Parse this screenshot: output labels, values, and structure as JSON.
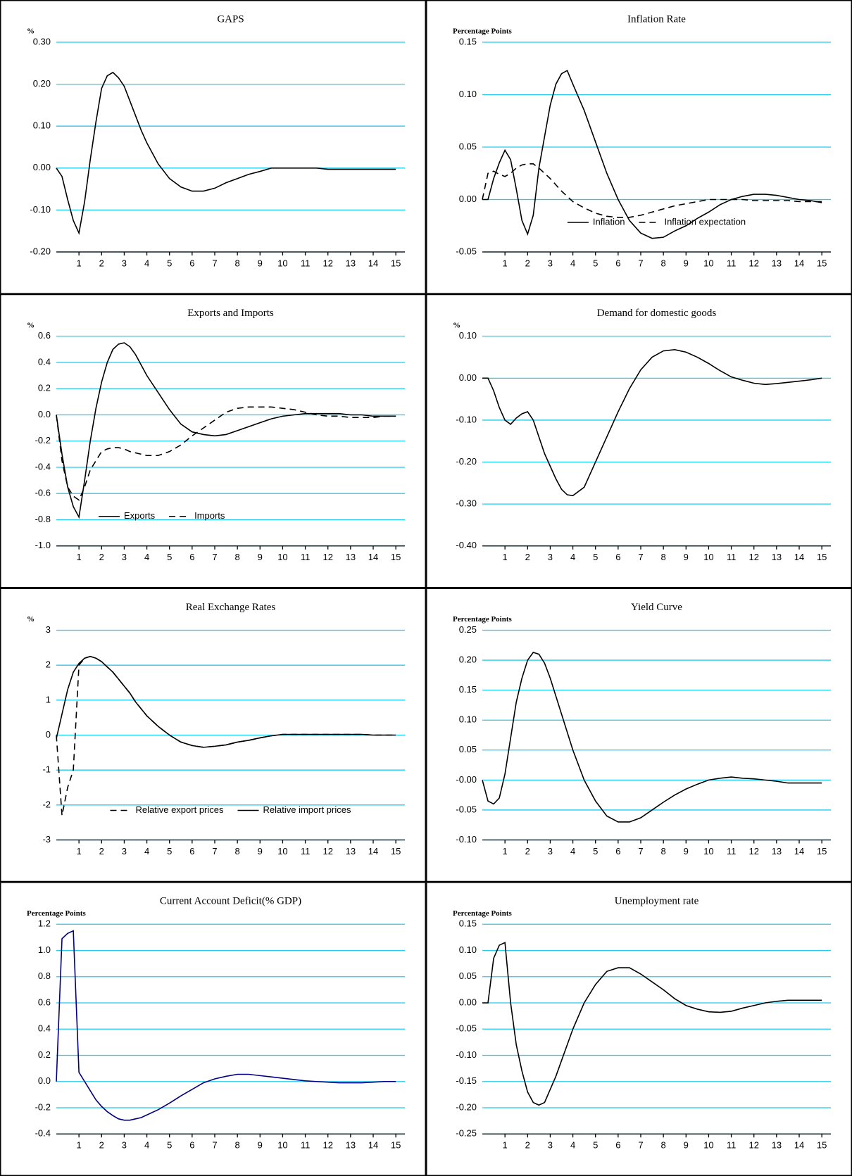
{
  "chart_data": [
    {
      "type": "line",
      "title": "GAPS",
      "ylabel": "%",
      "color": "#000000",
      "grid": true,
      "x": [
        0,
        0.25,
        0.5,
        0.75,
        1,
        1.25,
        1.5,
        1.75,
        2,
        2.25,
        2.5,
        2.75,
        3,
        3.25,
        3.5,
        3.75,
        4,
        4.5,
        5,
        5.5,
        6,
        6.5,
        7,
        7.5,
        8,
        8.5,
        9,
        9.5,
        10,
        10.5,
        11,
        11.5,
        12,
        12.5,
        13,
        13.5,
        14,
        14.5,
        15
      ],
      "values": [
        0,
        -0.02,
        -0.075,
        -0.125,
        -0.155,
        -0.08,
        0.02,
        0.11,
        0.19,
        0.22,
        0.228,
        0.215,
        0.195,
        0.16,
        0.125,
        0.09,
        0.06,
        0.01,
        -0.025,
        -0.045,
        -0.055,
        -0.055,
        -0.048,
        -0.035,
        -0.025,
        -0.015,
        -0.008,
        0,
        0,
        0,
        0,
        0,
        -0.003,
        -0.003,
        -0.003,
        -0.003,
        -0.003,
        -0.003,
        -0.003
      ],
      "xlim": [
        0,
        15.4
      ],
      "xticks": [
        1,
        2,
        3,
        4,
        5,
        6,
        7,
        8,
        9,
        10,
        11,
        12,
        13,
        14,
        15
      ],
      "ylim": [
        -0.2,
        0.3
      ],
      "yticks": [
        {
          "value": 0.3,
          "label": "0.30"
        },
        {
          "value": 0.2,
          "label": "0.20"
        },
        {
          "value": 0.1,
          "label": "0.10"
        },
        {
          "value": 0,
          "label": "0.00"
        },
        {
          "value": -0.1,
          "label": "-0.10"
        },
        {
          "value": -0.2,
          "label": "-0.20"
        }
      ]
    },
    {
      "type": "line",
      "title": "Inflation Rate",
      "ylabel": "Percentage Points",
      "grid": true,
      "legend": "lower center",
      "x": [
        0,
        0.25,
        0.5,
        0.75,
        1,
        1.25,
        1.5,
        1.75,
        2,
        2.25,
        2.5,
        2.75,
        3,
        3.25,
        3.5,
        3.75,
        4,
        4.5,
        5,
        5.5,
        6,
        6.5,
        7,
        7.5,
        8,
        8.5,
        9,
        9.5,
        10,
        10.5,
        11,
        11.5,
        12,
        12.5,
        13,
        13.5,
        14,
        14.5,
        15
      ],
      "series": [
        {
          "name": "Inflation",
          "color": "#000000",
          "dash": false,
          "values": [
            0,
            0,
            0.02,
            0.035,
            0.047,
            0.038,
            0.01,
            -0.02,
            -0.033,
            -0.015,
            0.03,
            0.06,
            0.09,
            0.11,
            0.12,
            0.123,
            0.11,
            0.085,
            0.055,
            0.025,
            0,
            -0.02,
            -0.032,
            -0.037,
            -0.036,
            -0.03,
            -0.025,
            -0.018,
            -0.012,
            -0.005,
            0,
            0.003,
            0.005,
            0.005,
            0.004,
            0.002,
            0,
            -0.001,
            -0.003
          ]
        },
        {
          "name": "Inflation expectation",
          "color": "#000000",
          "dash": true,
          "values": [
            0,
            0.025,
            0.027,
            0.024,
            0.022,
            0.025,
            0.03,
            0.033,
            0.034,
            0.034,
            0.03,
            0.025,
            0.02,
            0.014,
            0.008,
            0.003,
            -0.002,
            -0.008,
            -0.013,
            -0.016,
            -0.017,
            -0.017,
            -0.015,
            -0.012,
            -0.009,
            -0.006,
            -0.004,
            -0.002,
            0,
            0,
            0,
            0,
            -0.001,
            -0.001,
            -0.001,
            -0.001,
            -0.002,
            -0.002,
            -0.002
          ]
        }
      ],
      "xlim": [
        0,
        15.4
      ],
      "xticks": [
        1,
        2,
        3,
        4,
        5,
        6,
        7,
        8,
        9,
        10,
        11,
        12,
        13,
        14,
        15
      ],
      "ylim": [
        -0.05,
        0.15
      ],
      "yticks": [
        {
          "value": 0.15,
          "label": "0.15"
        },
        {
          "value": 0.1,
          "label": "0.10"
        },
        {
          "value": 0.05,
          "label": "0.05"
        },
        {
          "value": 0,
          "label": "0.00"
        },
        {
          "value": -0.05,
          "label": "-0.05"
        }
      ]
    },
    {
      "type": "line",
      "title": "Exports and Imports",
      "ylabel": "%",
      "grid": true,
      "legend": "lower left",
      "x": [
        0,
        0.25,
        0.5,
        0.75,
        1,
        1.25,
        1.5,
        1.75,
        2,
        2.25,
        2.5,
        2.75,
        3,
        3.25,
        3.5,
        3.75,
        4,
        4.5,
        5,
        5.5,
        6,
        6.5,
        7,
        7.5,
        8,
        8.5,
        9,
        9.5,
        10,
        10.5,
        11,
        11.5,
        12,
        12.5,
        13,
        13.5,
        14,
        14.5,
        15
      ],
      "series": [
        {
          "name": "Exports",
          "color": "#000000",
          "dash": false,
          "values": [
            0,
            -0.3,
            -0.55,
            -0.7,
            -0.78,
            -0.5,
            -0.2,
            0.05,
            0.25,
            0.4,
            0.5,
            0.54,
            0.55,
            0.52,
            0.46,
            0.38,
            0.3,
            0.17,
            0.04,
            -0.07,
            -0.13,
            -0.15,
            -0.16,
            -0.15,
            -0.12,
            -0.09,
            -0.06,
            -0.03,
            -0.01,
            0,
            0.01,
            0.01,
            0.01,
            0.01,
            0,
            0,
            -0.01,
            -0.01,
            -0.01
          ]
        },
        {
          "name": "Imports",
          "color": "#000000",
          "dash": true,
          "values": [
            0,
            -0.35,
            -0.55,
            -0.62,
            -0.65,
            -0.55,
            -0.42,
            -0.35,
            -0.28,
            -0.26,
            -0.25,
            -0.25,
            -0.26,
            -0.28,
            -0.29,
            -0.3,
            -0.31,
            -0.31,
            -0.28,
            -0.23,
            -0.16,
            -0.1,
            -0.04,
            0.02,
            0.05,
            0.06,
            0.06,
            0.06,
            0.05,
            0.04,
            0.02,
            0,
            -0.01,
            -0.01,
            -0.02,
            -0.02,
            -0.02,
            -0.01,
            -0.01
          ]
        }
      ],
      "xlim": [
        0,
        15.4
      ],
      "xticks": [
        1,
        2,
        3,
        4,
        5,
        6,
        7,
        8,
        9,
        10,
        11,
        12,
        13,
        14,
        15
      ],
      "ylim": [
        -1.0,
        0.6
      ],
      "yticks": [
        0.6,
        0.4,
        0.2,
        {
          "value": 0,
          "label": "0.0"
        },
        -0.2,
        -0.4,
        -0.6,
        -0.8,
        {
          "value": -1.0,
          "label": "-1.0"
        }
      ]
    },
    {
      "type": "line",
      "title": "Demand for domestic goods",
      "ylabel": "%",
      "color": "#000000",
      "grid": true,
      "x": [
        0,
        0.25,
        0.5,
        0.75,
        1,
        1.25,
        1.5,
        1.75,
        2,
        2.25,
        2.5,
        2.75,
        3,
        3.25,
        3.5,
        3.75,
        4,
        4.5,
        5,
        5.5,
        6,
        6.5,
        7,
        7.5,
        8,
        8.5,
        9,
        9.5,
        10,
        10.5,
        11,
        11.5,
        12,
        12.5,
        13,
        13.5,
        14,
        14.5,
        15
      ],
      "values": [
        0,
        0,
        -0.03,
        -0.07,
        -0.1,
        -0.11,
        -0.095,
        -0.085,
        -0.08,
        -0.1,
        -0.14,
        -0.18,
        -0.21,
        -0.24,
        -0.265,
        -0.278,
        -0.28,
        -0.26,
        -0.2,
        -0.14,
        -0.08,
        -0.025,
        0.02,
        0.05,
        0.065,
        0.068,
        0.062,
        0.05,
        0.035,
        0.018,
        0.003,
        -0.005,
        -0.012,
        -0.015,
        -0.013,
        -0.01,
        -0.007,
        -0.004,
        0
      ],
      "xlim": [
        0,
        15.4
      ],
      "xticks": [
        1,
        2,
        3,
        4,
        5,
        6,
        7,
        8,
        9,
        10,
        11,
        12,
        13,
        14,
        15
      ],
      "ylim": [
        -0.4,
        0.1
      ],
      "yticks": [
        {
          "value": 0.1,
          "label": "0.10"
        },
        {
          "value": 0,
          "label": "0.00"
        },
        {
          "value": -0.1,
          "label": "-0.10"
        },
        {
          "value": -0.2,
          "label": "-0.20"
        },
        {
          "value": -0.3,
          "label": "-0.30"
        },
        {
          "value": -0.4,
          "label": "-0.40"
        }
      ]
    },
    {
      "type": "line",
      "title": "Real Exchange Rates",
      "ylabel": "%",
      "grid": true,
      "legend": "lower center",
      "x": [
        0,
        0.25,
        0.5,
        0.75,
        1,
        1.25,
        1.5,
        1.75,
        2,
        2.25,
        2.5,
        2.75,
        3,
        3.25,
        3.5,
        3.75,
        4,
        4.5,
        5,
        5.5,
        6,
        6.5,
        7,
        7.5,
        8,
        8.5,
        9,
        9.5,
        10,
        10.5,
        11,
        11.5,
        12,
        12.5,
        13,
        13.5,
        14,
        14.5,
        15
      ],
      "series": [
        {
          "name": "Relative export prices",
          "color": "#000000",
          "dash": true,
          "values": [
            0,
            -2.3,
            -1.5,
            -1.0,
            2.0,
            2.2,
            2.25,
            2.2,
            2.1,
            1.95,
            1.8,
            1.6,
            1.4,
            1.2,
            0.95,
            0.75,
            0.55,
            0.25,
            0,
            -0.2,
            -0.3,
            -0.35,
            -0.32,
            -0.28,
            -0.2,
            -0.15,
            -0.08,
            -0.02,
            0.02,
            0.02,
            0.02,
            0.02,
            0.02,
            0.02,
            0.02,
            0.02,
            0,
            0,
            0
          ]
        },
        {
          "name": "Relative import prices",
          "color": "#000000",
          "dash": false,
          "values": [
            -0.1,
            0.6,
            1.3,
            1.8,
            2.05,
            2.2,
            2.25,
            2.2,
            2.1,
            1.95,
            1.8,
            1.6,
            1.4,
            1.2,
            0.95,
            0.75,
            0.55,
            0.25,
            0,
            -0.2,
            -0.3,
            -0.35,
            -0.32,
            -0.28,
            -0.2,
            -0.15,
            -0.08,
            -0.02,
            0.02,
            0.02,
            0.02,
            0.02,
            0.02,
            0.02,
            0.02,
            0.02,
            0,
            0,
            0
          ]
        }
      ],
      "xlim": [
        0,
        15.4
      ],
      "xticks": [
        1,
        2,
        3,
        4,
        5,
        6,
        7,
        8,
        9,
        10,
        11,
        12,
        13,
        14,
        15
      ],
      "ylim": [
        -3,
        3
      ],
      "yticks": [
        3,
        2,
        1,
        0,
        -1,
        -2,
        -3
      ]
    },
    {
      "type": "line",
      "title": "Yield Curve",
      "ylabel": "Percentage Points",
      "color": "#000000",
      "grid": true,
      "x": [
        0,
        0.25,
        0.5,
        0.75,
        1,
        1.25,
        1.5,
        1.75,
        2,
        2.25,
        2.5,
        2.75,
        3,
        3.25,
        3.5,
        3.75,
        4,
        4.5,
        5,
        5.5,
        6,
        6.5,
        7,
        7.5,
        8,
        8.5,
        9,
        9.5,
        10,
        10.5,
        11,
        11.5,
        12,
        12.5,
        13,
        13.5,
        14,
        14.5,
        15
      ],
      "values": [
        0,
        -0.035,
        -0.04,
        -0.03,
        0.01,
        0.07,
        0.13,
        0.17,
        0.2,
        0.213,
        0.21,
        0.195,
        0.17,
        0.14,
        0.11,
        0.08,
        0.05,
        0,
        -0.035,
        -0.06,
        -0.07,
        -0.07,
        -0.063,
        -0.05,
        -0.037,
        -0.025,
        -0.015,
        -0.007,
        0,
        0.003,
        0.005,
        0.003,
        0.002,
        0,
        -0.002,
        -0.005,
        -0.005,
        -0.005,
        -0.005
      ],
      "xlim": [
        0,
        15.4
      ],
      "xticks": [
        1,
        2,
        3,
        4,
        5,
        6,
        7,
        8,
        9,
        10,
        11,
        12,
        13,
        14,
        15
      ],
      "ylim": [
        -0.1,
        0.25
      ],
      "yticks": [
        {
          "value": 0.25,
          "label": "0.25"
        },
        {
          "value": 0.2,
          "label": "0.20"
        },
        {
          "value": 0.15,
          "label": "0.15"
        },
        {
          "value": 0.1,
          "label": "0.10"
        },
        {
          "value": 0.05,
          "label": "0.05"
        },
        {
          "value": 0,
          "label": "-0.00"
        },
        {
          "value": -0.05,
          "label": "-0.05"
        },
        {
          "value": -0.1,
          "label": "-0.10"
        }
      ]
    },
    {
      "type": "line",
      "title": "Current Account Deficit(% GDP)",
      "ylabel": "Percentage Points",
      "color": "#000080",
      "grid": true,
      "x": [
        0,
        0.25,
        0.5,
        0.75,
        1,
        1.25,
        1.5,
        1.75,
        2,
        2.25,
        2.5,
        2.75,
        3,
        3.25,
        3.5,
        3.75,
        4,
        4.5,
        5,
        5.5,
        6,
        6.5,
        7,
        7.5,
        8,
        8.5,
        9,
        9.5,
        10,
        10.5,
        11,
        11.5,
        12,
        12.5,
        13,
        13.5,
        14,
        14.5,
        15
      ],
      "values": [
        0,
        1.09,
        1.13,
        1.15,
        0.07,
        0,
        -0.07,
        -0.14,
        -0.19,
        -0.23,
        -0.26,
        -0.285,
        -0.295,
        -0.295,
        -0.285,
        -0.275,
        -0.255,
        -0.215,
        -0.165,
        -0.11,
        -0.06,
        -0.01,
        0.02,
        0.04,
        0.055,
        0.055,
        0.045,
        0.035,
        0.025,
        0.015,
        0.005,
        0,
        -0.005,
        -0.01,
        -0.01,
        -0.01,
        -0.005,
        0,
        0
      ],
      "xlim": [
        0,
        15.4
      ],
      "xticks": [
        1,
        2,
        3,
        4,
        5,
        6,
        7,
        8,
        9,
        10,
        11,
        12,
        13,
        14,
        15
      ],
      "ylim": [
        -0.4,
        1.2
      ],
      "yticks": [
        1.2,
        {
          "value": 1.0,
          "label": "1.0"
        },
        0.8,
        0.6,
        0.4,
        0.2,
        {
          "value": 0,
          "label": "0.0"
        },
        -0.2,
        -0.4
      ]
    },
    {
      "type": "line",
      "title": "Unemployment rate",
      "ylabel": "Percentage Points",
      "color": "#000000",
      "grid": true,
      "x": [
        0,
        0.25,
        0.5,
        0.75,
        1,
        1.25,
        1.5,
        1.75,
        2,
        2.25,
        2.5,
        2.75,
        3,
        3.25,
        3.5,
        3.75,
        4,
        4.5,
        5,
        5.5,
        6,
        6.5,
        7,
        7.5,
        8,
        8.5,
        9,
        9.5,
        10,
        10.5,
        11,
        11.5,
        12,
        12.5,
        13,
        13.5,
        14,
        14.5,
        15
      ],
      "values": [
        0,
        0,
        0.085,
        0.11,
        0.115,
        0,
        -0.08,
        -0.13,
        -0.17,
        -0.19,
        -0.195,
        -0.19,
        -0.165,
        -0.14,
        -0.11,
        -0.08,
        -0.05,
        0,
        0.035,
        0.06,
        0.067,
        0.067,
        0.055,
        0.04,
        0.025,
        0.008,
        -0.005,
        -0.012,
        -0.017,
        -0.018,
        -0.016,
        -0.01,
        -0.005,
        0,
        0.003,
        0.005,
        0.005,
        0.005,
        0.005
      ],
      "xlim": [
        0,
        15.4
      ],
      "xticks": [
        1,
        2,
        3,
        4,
        5,
        6,
        7,
        8,
        9,
        10,
        11,
        12,
        13,
        14,
        15
      ],
      "ylim": [
        -0.25,
        0.15
      ],
      "yticks": [
        {
          "value": 0.15,
          "label": "0.15"
        },
        {
          "value": 0.1,
          "label": "0.10"
        },
        {
          "value": 0.05,
          "label": "0.05"
        },
        {
          "value": 0,
          "label": "0.00"
        },
        {
          "value": -0.05,
          "label": "-0.05"
        },
        {
          "value": -0.1,
          "label": "-0.10"
        },
        {
          "value": -0.15,
          "label": "-0.15"
        },
        {
          "value": -0.2,
          "label": "-0.20"
        },
        {
          "value": -0.25,
          "label": "-0.25"
        }
      ]
    }
  ]
}
